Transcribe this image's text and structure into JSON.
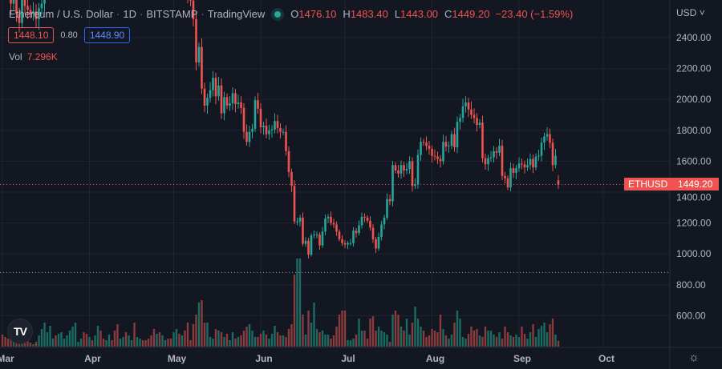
{
  "header": {
    "symbol_title": "Ethereum / U.S. Dollar",
    "interval": "1D",
    "exchange": "BITSTAMP",
    "provider": "TradingView",
    "separator": "·",
    "ohlc": {
      "o_label": "O",
      "o": "1476.10",
      "h_label": "H",
      "h": "1483.40",
      "l_label": "L",
      "l": "1443.00",
      "c_label": "C",
      "c": "1449.20",
      "change": "−23.40 (−1.59%)"
    },
    "sell_price": "1448.10",
    "spread": "0.80",
    "buy_price": "1448.90",
    "vol_label": "Vol",
    "vol_value": "7.296K"
  },
  "price_axis": {
    "currency": "USD",
    "ticks": [
      "2400.00",
      "2200.00",
      "2000.00",
      "1800.00",
      "1600.00",
      "1400.00",
      "1200.00",
      "1000.00",
      "800.00",
      "600.00"
    ]
  },
  "last_price_tag": {
    "symbol": "ETHUSD",
    "price": "1449.20"
  },
  "logo_text": "TV",
  "colors": {
    "up": "#26a69a",
    "down": "#ef5350",
    "background": "#131722",
    "grid": "#1f2330"
  },
  "chart_data": {
    "type": "candlestick",
    "title": "Ethereum / U.S. Dollar · 1D · BITSTAMP",
    "x_start": "2022-03-01",
    "x_end": "2022-09-15",
    "time_ticks": [
      "Mar",
      "Apr",
      "May",
      "Jun",
      "Jul",
      "Aug",
      "Sep",
      "Oct"
    ],
    "time_tick_day_index": [
      0,
      31,
      61,
      92,
      122,
      153,
      184,
      214
    ],
    "ylim": [
      600,
      2640
    ],
    "last_open": 1476.1,
    "reference_line": 880,
    "closes": [
      2970,
      2950,
      2835,
      2620,
      2665,
      2555,
      2495,
      2725,
      2605,
      2580,
      2555,
      2570,
      2520,
      2590,
      2620,
      2775,
      2815,
      2945,
      2950,
      2895,
      2895,
      2970,
      3030,
      3110,
      3110,
      3140,
      3290,
      3330,
      3400,
      3385,
      3280,
      3450,
      3440,
      3520,
      3520,
      3410,
      3175,
      3240,
      3260,
      3165,
      3145,
      2980,
      3030,
      3120,
      3020,
      3040,
      3060,
      2990,
      3055,
      3100,
      3075,
      2985,
      2965,
      2935,
      2920,
      3005,
      2810,
      2890,
      2940,
      2815,
      2730,
      2825,
      2860,
      2780,
      2940,
      2750,
      2690,
      2640,
      2520,
      2240,
      2340,
      2070,
      1960,
      2010,
      2060,
      2140,
      2020,
      2090,
      1910,
      2015,
      1960,
      1975,
      2040,
      1970,
      1980,
      1945,
      1790,
      1725,
      1790,
      1810,
      1995,
      1940,
      1820,
      1830,
      1775,
      1800,
      1805,
      1860,
      1815,
      1790,
      1790,
      1665,
      1530,
      1440,
      1210,
      1210,
      1235,
      1065,
      1085,
      995,
      1120,
      1125,
      1125,
      1055,
      1145,
      1230,
      1240,
      1200,
      1190,
      1145,
      1095,
      1070,
      1060,
      1070,
      1070,
      1150,
      1135,
      1185,
      1240,
      1235,
      1215,
      1170,
      1095,
      1035,
      1110,
      1190,
      1235,
      1355,
      1340,
      1575,
      1540,
      1520,
      1575,
      1540,
      1550,
      1600,
      1440,
      1450,
      1640,
      1725,
      1720,
      1700,
      1680,
      1635,
      1630,
      1615,
      1600,
      1725,
      1695,
      1700,
      1775,
      1690,
      1855,
      1880,
      1955,
      1980,
      1935,
      1900,
      1880,
      1835,
      1850,
      1620,
      1580,
      1620,
      1625,
      1665,
      1655,
      1700,
      1505,
      1490,
      1430,
      1555,
      1525,
      1555,
      1585,
      1580,
      1560,
      1575,
      1615,
      1560,
      1630,
      1635,
      1720,
      1760,
      1775,
      1720,
      1575,
      1635,
      1449.2
    ],
    "volumes_k": [
      15,
      12,
      10,
      16,
      8,
      6,
      10,
      18,
      8,
      9,
      5,
      3,
      6,
      14,
      22,
      30,
      18,
      26,
      10,
      14,
      16,
      18,
      10,
      14,
      20,
      25,
      30,
      6,
      10,
      18,
      16,
      12,
      8,
      14,
      26,
      20,
      10,
      8,
      15,
      8,
      20,
      28,
      10,
      12,
      18,
      14,
      8,
      30,
      12,
      10,
      8,
      8,
      10,
      14,
      22,
      16,
      18,
      14,
      8,
      10,
      10,
      18,
      22,
      16,
      14,
      20,
      30,
      8,
      28,
      40,
      55,
      58,
      30,
      30,
      12,
      10,
      22,
      20,
      18,
      12,
      16,
      8,
      18,
      10,
      12,
      14,
      20,
      25,
      28,
      20,
      12,
      12,
      16,
      20,
      15,
      10,
      16,
      26,
      18,
      14,
      14,
      12,
      22,
      28,
      90,
      110,
      110,
      40,
      15,
      45,
      30,
      55,
      22,
      18,
      20,
      15,
      15,
      10,
      14,
      25,
      40,
      45,
      45,
      8,
      8,
      10,
      15,
      35,
      20,
      20,
      10,
      35,
      38,
      20,
      25,
      20,
      18,
      15,
      6,
      40,
      45,
      40,
      25,
      20,
      35,
      15,
      30,
      50,
      35,
      25,
      20,
      12,
      14,
      22,
      20,
      18,
      40,
      22,
      14,
      10,
      15,
      30,
      45,
      35,
      12,
      10,
      16,
      25,
      20,
      22,
      14,
      12,
      25,
      20,
      20,
      15,
      12,
      18,
      10,
      25,
      18,
      14,
      12,
      15,
      12,
      25,
      16,
      10,
      18,
      28,
      12,
      22,
      26,
      30,
      18,
      28,
      35,
      15,
      7.296
    ]
  }
}
